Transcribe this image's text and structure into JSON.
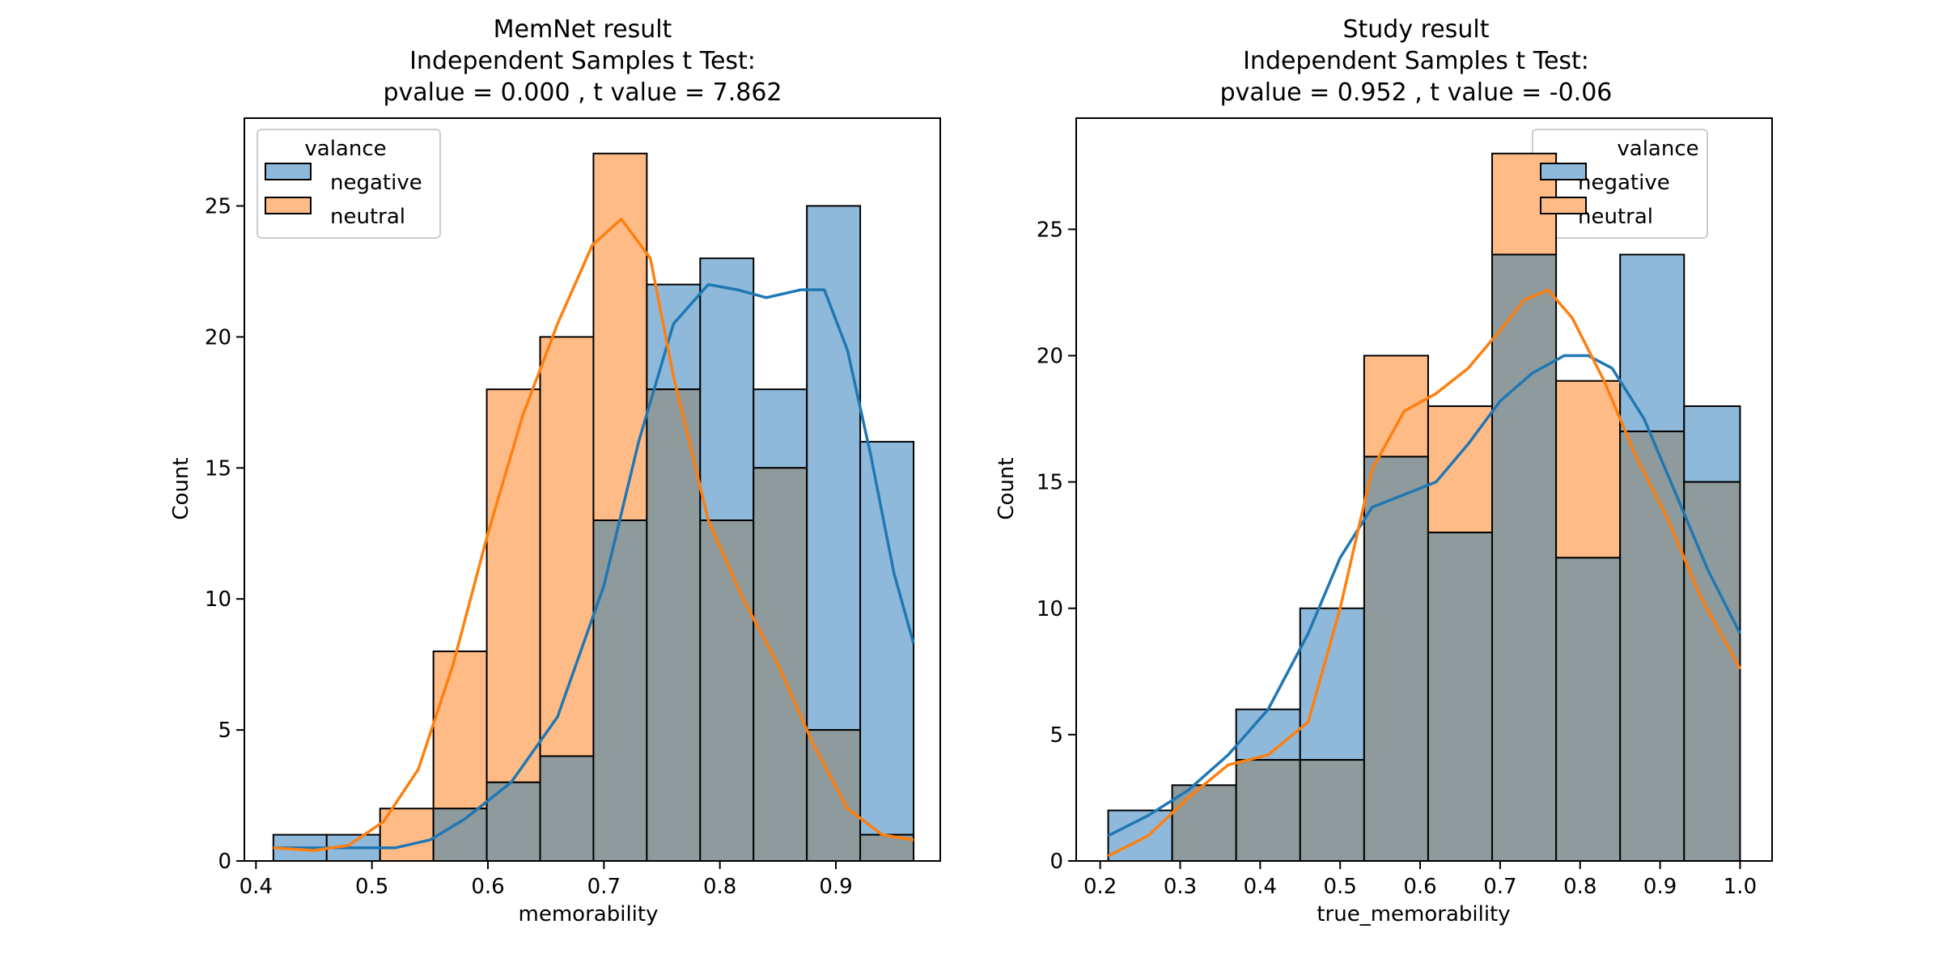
{
  "colors": {
    "negative": "#1f77b4",
    "neutral": "#ff7f0e",
    "negative_fill": "#8fb9da",
    "neutral_fill": "#ffbb86",
    "overlap_fill": "#8e9a9c",
    "edge": "#000000"
  },
  "chart_data": [
    {
      "type": "histogram",
      "title_lines": [
        "MemNet result",
        "Independent Samples t Test:",
        "pvalue =  0.000 , t value = 7.862"
      ],
      "xlabel": "memorability",
      "ylabel": "Count",
      "xlim": [
        0.39,
        0.99
      ],
      "ylim": [
        0,
        28.35
      ],
      "xticks": [
        0.4,
        0.5,
        0.6,
        0.7,
        0.8,
        0.9
      ],
      "xtick_labels": [
        "0.4",
        "0.5",
        "0.6",
        "0.7",
        "0.8",
        "0.9"
      ],
      "yticks": [
        0,
        5,
        10,
        15,
        20,
        25
      ],
      "ytick_labels": [
        "0",
        "5",
        "10",
        "15",
        "20",
        "25"
      ],
      "legend": {
        "title": "valance",
        "placement": "upper-left",
        "entries": [
          "negative",
          "neutral"
        ]
      },
      "bin_edges": [
        0.415,
        0.461,
        0.507,
        0.553,
        0.599,
        0.645,
        0.691,
        0.737,
        0.783,
        0.829,
        0.875,
        0.921,
        0.967
      ],
      "series": [
        {
          "name": "negative",
          "counts": [
            1,
            1,
            0,
            2,
            3,
            4,
            13,
            22,
            23,
            18,
            25,
            16
          ],
          "kde": [
            [
              0.415,
              0.5
            ],
            [
              0.45,
              0.5
            ],
            [
              0.49,
              0.5
            ],
            [
              0.52,
              0.5
            ],
            [
              0.55,
              0.8
            ],
            [
              0.58,
              1.6
            ],
            [
              0.62,
              3.0
            ],
            [
              0.66,
              5.5
            ],
            [
              0.7,
              10.5
            ],
            [
              0.73,
              16.0
            ],
            [
              0.76,
              20.5
            ],
            [
              0.79,
              22.0
            ],
            [
              0.815,
              21.8
            ],
            [
              0.84,
              21.5
            ],
            [
              0.87,
              21.8
            ],
            [
              0.89,
              21.8
            ],
            [
              0.91,
              19.5
            ],
            [
              0.93,
              15.5
            ],
            [
              0.95,
              11.0
            ],
            [
              0.967,
              8.3
            ]
          ]
        },
        {
          "name": "neutral",
          "counts": [
            0,
            0,
            2,
            8,
            18,
            20,
            27,
            18,
            13,
            15,
            5,
            1
          ],
          "kde": [
            [
              0.415,
              0.5
            ],
            [
              0.45,
              0.4
            ],
            [
              0.48,
              0.6
            ],
            [
              0.51,
              1.5
            ],
            [
              0.54,
              3.5
            ],
            [
              0.57,
              7.5
            ],
            [
              0.6,
              12.5
            ],
            [
              0.63,
              17.0
            ],
            [
              0.66,
              20.5
            ],
            [
              0.69,
              23.5
            ],
            [
              0.715,
              24.5
            ],
            [
              0.74,
              23.0
            ],
            [
              0.76,
              18.5
            ],
            [
              0.79,
              13.0
            ],
            [
              0.82,
              10.0
            ],
            [
              0.85,
              7.5
            ],
            [
              0.88,
              4.5
            ],
            [
              0.91,
              2.0
            ],
            [
              0.94,
              1.0
            ],
            [
              0.967,
              0.8
            ]
          ]
        }
      ]
    },
    {
      "type": "histogram",
      "title_lines": [
        "Study result",
        "Independent Samples t Test:",
        "pvalue = 0.952 , t value = -0.06"
      ],
      "xlabel": "true_memorability",
      "ylabel": "Count",
      "xlim": [
        0.17,
        1.04
      ],
      "ylim": [
        0,
        29.4
      ],
      "xticks": [
        0.2,
        0.3,
        0.4,
        0.5,
        0.6,
        0.7,
        0.8,
        0.9,
        1.0
      ],
      "xtick_labels": [
        "0.2",
        "0.3",
        "0.4",
        "0.5",
        "0.6",
        "0.7",
        "0.8",
        "0.9",
        "1.0"
      ],
      "yticks": [
        0,
        5,
        10,
        15,
        20,
        25
      ],
      "ytick_labels": [
        "0",
        "5",
        "10",
        "15",
        "20",
        "25"
      ],
      "legend": {
        "title": "valance",
        "placement": "upper-right",
        "entries": [
          "negative",
          "neutral"
        ]
      },
      "bin_edges": [
        0.21,
        0.29,
        0.37,
        0.45,
        0.53,
        0.61,
        0.69,
        0.77,
        0.85,
        0.93,
        1.0
      ],
      "series": [
        {
          "name": "negative",
          "counts": [
            2,
            3,
            6,
            10,
            16,
            13,
            24,
            12,
            24,
            18
          ],
          "kde": [
            [
              0.21,
              1.0
            ],
            [
              0.26,
              1.8
            ],
            [
              0.31,
              2.8
            ],
            [
              0.36,
              4.2
            ],
            [
              0.41,
              6.0
            ],
            [
              0.46,
              9.0
            ],
            [
              0.5,
              12.0
            ],
            [
              0.54,
              14.0
            ],
            [
              0.58,
              14.5
            ],
            [
              0.62,
              15.0
            ],
            [
              0.66,
              16.5
            ],
            [
              0.7,
              18.2
            ],
            [
              0.74,
              19.3
            ],
            [
              0.78,
              20.0
            ],
            [
              0.81,
              20.0
            ],
            [
              0.84,
              19.5
            ],
            [
              0.88,
              17.5
            ],
            [
              0.92,
              14.5
            ],
            [
              0.96,
              11.5
            ],
            [
              1.0,
              9.0
            ]
          ]
        },
        {
          "name": "neutral",
          "counts": [
            0,
            3,
            4,
            4,
            20,
            18,
            28,
            19,
            17,
            15
          ],
          "kde": [
            [
              0.21,
              0.2
            ],
            [
              0.26,
              1.0
            ],
            [
              0.31,
              2.5
            ],
            [
              0.36,
              3.8
            ],
            [
              0.41,
              4.2
            ],
            [
              0.46,
              5.5
            ],
            [
              0.5,
              10.0
            ],
            [
              0.54,
              15.5
            ],
            [
              0.58,
              17.8
            ],
            [
              0.62,
              18.5
            ],
            [
              0.66,
              19.5
            ],
            [
              0.7,
              21.0
            ],
            [
              0.73,
              22.2
            ],
            [
              0.76,
              22.6
            ],
            [
              0.79,
              21.5
            ],
            [
              0.83,
              19.0
            ],
            [
              0.87,
              16.0
            ],
            [
              0.91,
              13.5
            ],
            [
              0.95,
              10.5
            ],
            [
              1.0,
              7.6
            ]
          ]
        }
      ]
    }
  ]
}
